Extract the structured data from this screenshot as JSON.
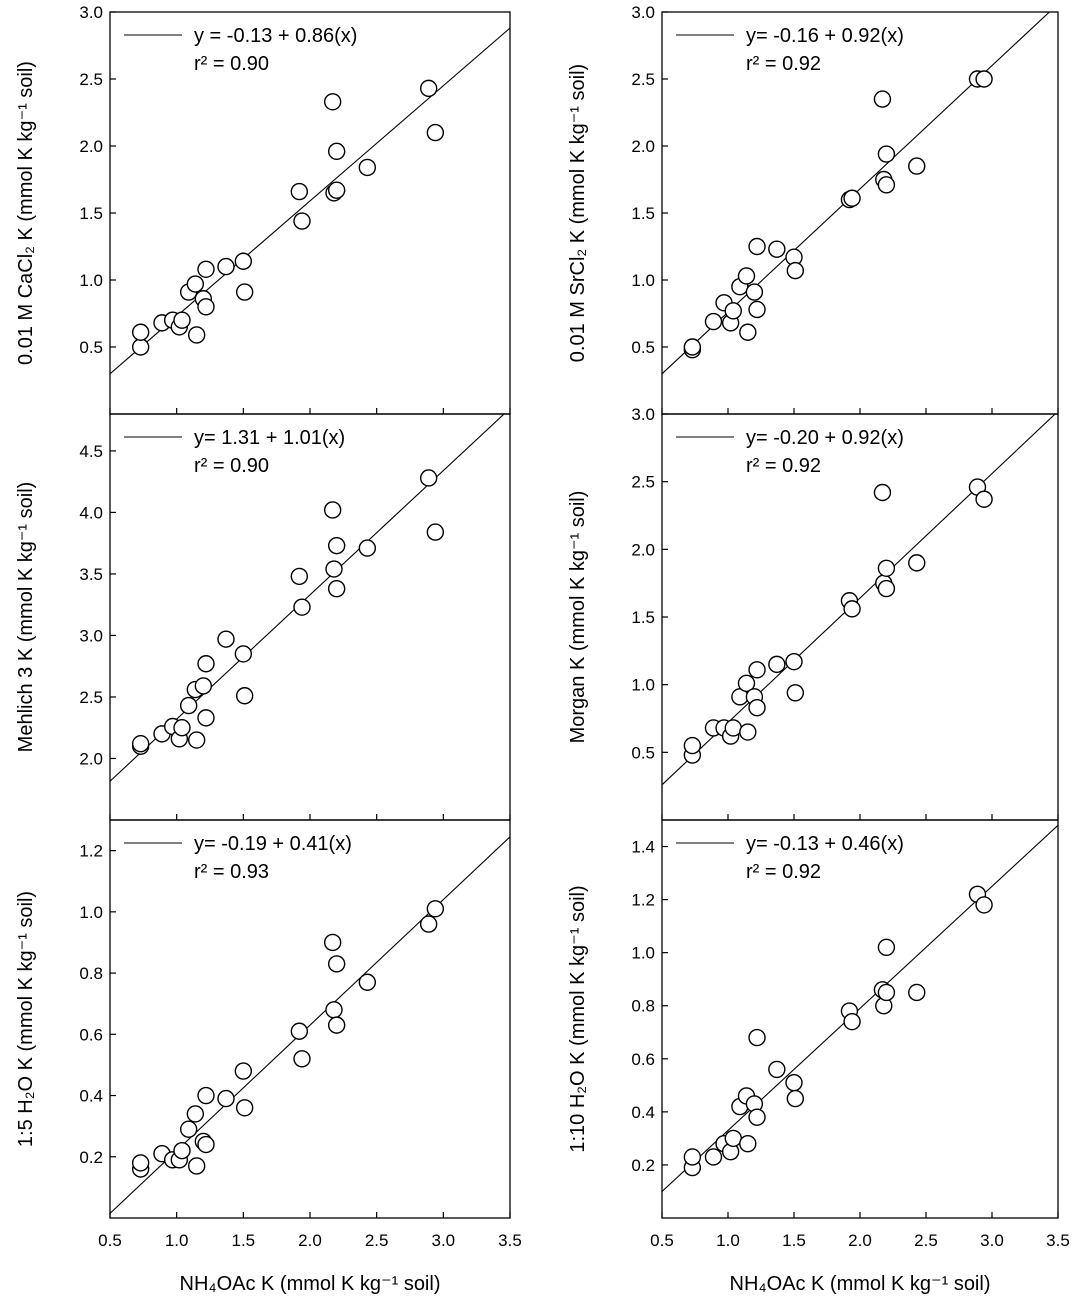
{
  "figure": {
    "x_title_common": "NH₄OAc K (mmol K kg⁻¹ soil)"
  },
  "chart_data": [
    {
      "type": "scatter",
      "panel": "top-left",
      "ylabel": "0.01 M CaCl₂ K (mmol K kg⁻¹ soil)",
      "xlim": [
        0.5,
        3.5
      ],
      "ylim": [
        0.0,
        3.0
      ],
      "xticks": [],
      "yticks": [
        0.5,
        1.0,
        1.5,
        2.0,
        2.5,
        3.0
      ],
      "ytick_labels": [
        "0.5",
        "1.0",
        "1.5",
        "2.0",
        "2.5",
        "3.0"
      ],
      "equation": "y = -0.13 + 0.86(x)",
      "r2_label": "r² = 0.90",
      "fit": {
        "intercept": -0.13,
        "slope": 0.86
      },
      "x": [
        0.73,
        0.73,
        0.89,
        0.97,
        1.02,
        1.04,
        1.09,
        1.14,
        1.15,
        1.2,
        1.22,
        1.22,
        1.37,
        1.5,
        1.51,
        1.92,
        1.94,
        2.17,
        2.18,
        2.2,
        2.2,
        2.43,
        2.89,
        2.94
      ],
      "y": [
        0.5,
        0.61,
        0.68,
        0.7,
        0.65,
        0.7,
        0.91,
        0.97,
        0.59,
        0.86,
        1.08,
        0.8,
        1.1,
        1.14,
        0.91,
        1.66,
        1.44,
        2.33,
        1.65,
        1.96,
        1.67,
        1.84,
        2.43,
        2.1
      ],
      "legend_position": "top-left"
    },
    {
      "type": "scatter",
      "panel": "top-right",
      "ylabel": "0.01 M SrCl₂ K (mmol K kg⁻¹ soil)",
      "xlim": [
        0.5,
        3.5
      ],
      "ylim": [
        0.0,
        3.0
      ],
      "xticks": [],
      "yticks": [
        0.5,
        1.0,
        1.5,
        2.0,
        2.5,
        3.0
      ],
      "ytick_labels": [
        "0.5",
        "1.0",
        "1.5",
        "2.0",
        "2.5",
        "3.0"
      ],
      "equation": "y= -0.16 + 0.92(x)",
      "r2_label": "r² = 0.92",
      "fit": {
        "intercept": -0.16,
        "slope": 0.92
      },
      "x": [
        0.73,
        0.73,
        0.89,
        0.97,
        1.02,
        1.04,
        1.09,
        1.14,
        1.15,
        1.2,
        1.22,
        1.22,
        1.37,
        1.5,
        1.51,
        1.92,
        1.94,
        2.17,
        2.18,
        2.2,
        2.2,
        2.43,
        2.89,
        2.94
      ],
      "y": [
        0.48,
        0.5,
        0.69,
        0.83,
        0.68,
        0.77,
        0.95,
        1.03,
        0.61,
        0.91,
        1.25,
        0.78,
        1.23,
        1.17,
        1.07,
        1.6,
        1.61,
        2.35,
        1.75,
        1.94,
        1.71,
        1.85,
        2.5,
        2.5
      ],
      "legend_position": "top-left"
    },
    {
      "type": "scatter",
      "panel": "middle-left",
      "ylabel": "Mehlich 3 K (mmol K kg⁻¹ soil)",
      "xlim": [
        0.5,
        3.5
      ],
      "ylim": [
        1.5,
        4.8
      ],
      "xticks": [],
      "yticks": [
        2.0,
        2.5,
        3.0,
        3.5,
        4.0,
        4.5
      ],
      "ytick_labels": [
        "2.0",
        "2.5",
        "3.0",
        "3.5",
        "4.0",
        "4.5"
      ],
      "equation": "y= 1.31 + 1.01(x)",
      "r2_label": "r² = 0.90",
      "fit": {
        "intercept": 1.31,
        "slope": 1.01
      },
      "x": [
        0.73,
        0.73,
        0.89,
        0.97,
        1.02,
        1.04,
        1.09,
        1.14,
        1.15,
        1.2,
        1.22,
        1.22,
        1.37,
        1.5,
        1.51,
        1.92,
        1.94,
        2.17,
        2.18,
        2.2,
        2.2,
        2.43,
        2.89,
        2.94
      ],
      "y": [
        2.1,
        2.12,
        2.2,
        2.26,
        2.16,
        2.25,
        2.43,
        2.56,
        2.15,
        2.59,
        2.77,
        2.33,
        2.97,
        2.85,
        2.51,
        3.48,
        3.23,
        4.02,
        3.54,
        3.73,
        3.38,
        3.71,
        4.28,
        3.84
      ],
      "legend_position": "top-left"
    },
    {
      "type": "scatter",
      "panel": "middle-right",
      "ylabel": "Morgan K (mmol K kg⁻¹ soil)",
      "xlim": [
        0.5,
        3.5
      ],
      "ylim": [
        0.0,
        3.0
      ],
      "xticks": [],
      "yticks": [
        0.5,
        1.0,
        1.5,
        2.0,
        2.5,
        3.0
      ],
      "ytick_labels": [
        "0.5",
        "1.0",
        "1.5",
        "2.0",
        "2.5",
        "3.0"
      ],
      "equation": "y= -0.20 + 0.92(x)",
      "r2_label": "r² = 0.92",
      "fit": {
        "intercept": -0.2,
        "slope": 0.92
      },
      "x": [
        0.73,
        0.73,
        0.89,
        0.97,
        1.02,
        1.04,
        1.09,
        1.14,
        1.15,
        1.2,
        1.22,
        1.22,
        1.37,
        1.5,
        1.51,
        1.92,
        1.94,
        2.17,
        2.18,
        2.2,
        2.2,
        2.43,
        2.89,
        2.94
      ],
      "y": [
        0.48,
        0.55,
        0.68,
        0.68,
        0.62,
        0.68,
        0.91,
        1.01,
        0.65,
        0.91,
        1.11,
        0.83,
        1.15,
        1.17,
        0.94,
        1.62,
        1.56,
        2.42,
        1.75,
        1.86,
        1.71,
        1.9,
        2.46,
        2.37
      ],
      "legend_position": "top-left"
    },
    {
      "type": "scatter",
      "panel": "bottom-left",
      "ylabel": "1:5 H₂O K (mmol K kg⁻¹ soil)",
      "xlabel": "NH₄OAc K (mmol K kg⁻¹ soil)",
      "xlim": [
        0.5,
        3.5
      ],
      "ylim": [
        0.0,
        1.3
      ],
      "xticks": [
        0.5,
        1.0,
        1.5,
        2.0,
        2.5,
        3.0,
        3.5
      ],
      "xtick_labels": [
        "0.5",
        "1.0",
        "1.5",
        "2.0",
        "2.5",
        "3.0",
        "3.5"
      ],
      "yticks": [
        0.2,
        0.4,
        0.6,
        0.8,
        1.0,
        1.2
      ],
      "ytick_labels": [
        "0.2",
        "0.4",
        "0.6",
        "0.8",
        "1.0",
        "1.2"
      ],
      "equation": "y= -0.19 + 0.41(x)",
      "r2_label": "r² = 0.93",
      "fit": {
        "intercept": -0.19,
        "slope": 0.41
      },
      "x": [
        0.73,
        0.73,
        0.89,
        0.97,
        1.02,
        1.04,
        1.09,
        1.14,
        1.15,
        1.2,
        1.22,
        1.22,
        1.37,
        1.5,
        1.51,
        1.92,
        1.94,
        2.17,
        2.18,
        2.2,
        2.2,
        2.43,
        2.89,
        2.94
      ],
      "y": [
        0.16,
        0.18,
        0.21,
        0.19,
        0.19,
        0.22,
        0.29,
        0.34,
        0.17,
        0.25,
        0.4,
        0.24,
        0.39,
        0.48,
        0.36,
        0.61,
        0.52,
        0.9,
        0.68,
        0.83,
        0.63,
        0.77,
        0.96,
        1.01
      ],
      "legend_position": "top-left"
    },
    {
      "type": "scatter",
      "panel": "bottom-right",
      "ylabel": "1:10 H₂O K (mmol K kg⁻¹ soil)",
      "xlabel": "NH₄OAc K (mmol K kg⁻¹ soil)",
      "xlim": [
        0.5,
        3.5
      ],
      "ylim": [
        0.0,
        1.5
      ],
      "xticks": [
        0.5,
        1.0,
        1.5,
        2.0,
        2.5,
        3.0,
        3.5
      ],
      "xtick_labels": [
        "0.5",
        "1.0",
        "1.5",
        "2.0",
        "2.5",
        "3.0",
        "3.5"
      ],
      "yticks": [
        0.2,
        0.4,
        0.6,
        0.8,
        1.0,
        1.2,
        1.4
      ],
      "ytick_labels": [
        "0.2",
        "0.4",
        "0.6",
        "0.8",
        "1.0",
        "1.2",
        "1.4"
      ],
      "equation": "y= -0.13 + 0.46(x)",
      "r2_label": "r² = 0.92",
      "fit": {
        "intercept": -0.13,
        "slope": 0.46
      },
      "x": [
        0.73,
        0.73,
        0.89,
        0.97,
        1.02,
        1.04,
        1.09,
        1.14,
        1.15,
        1.2,
        1.22,
        1.22,
        1.37,
        1.5,
        1.51,
        1.92,
        1.94,
        2.17,
        2.18,
        2.2,
        2.2,
        2.43,
        2.89,
        2.94
      ],
      "y": [
        0.19,
        0.23,
        0.23,
        0.28,
        0.25,
        0.3,
        0.42,
        0.46,
        0.28,
        0.43,
        0.68,
        0.38,
        0.56,
        0.51,
        0.45,
        0.78,
        0.74,
        0.86,
        0.8,
        1.02,
        0.85,
        0.85,
        1.22,
        1.18
      ],
      "legend_position": "top-left"
    }
  ]
}
